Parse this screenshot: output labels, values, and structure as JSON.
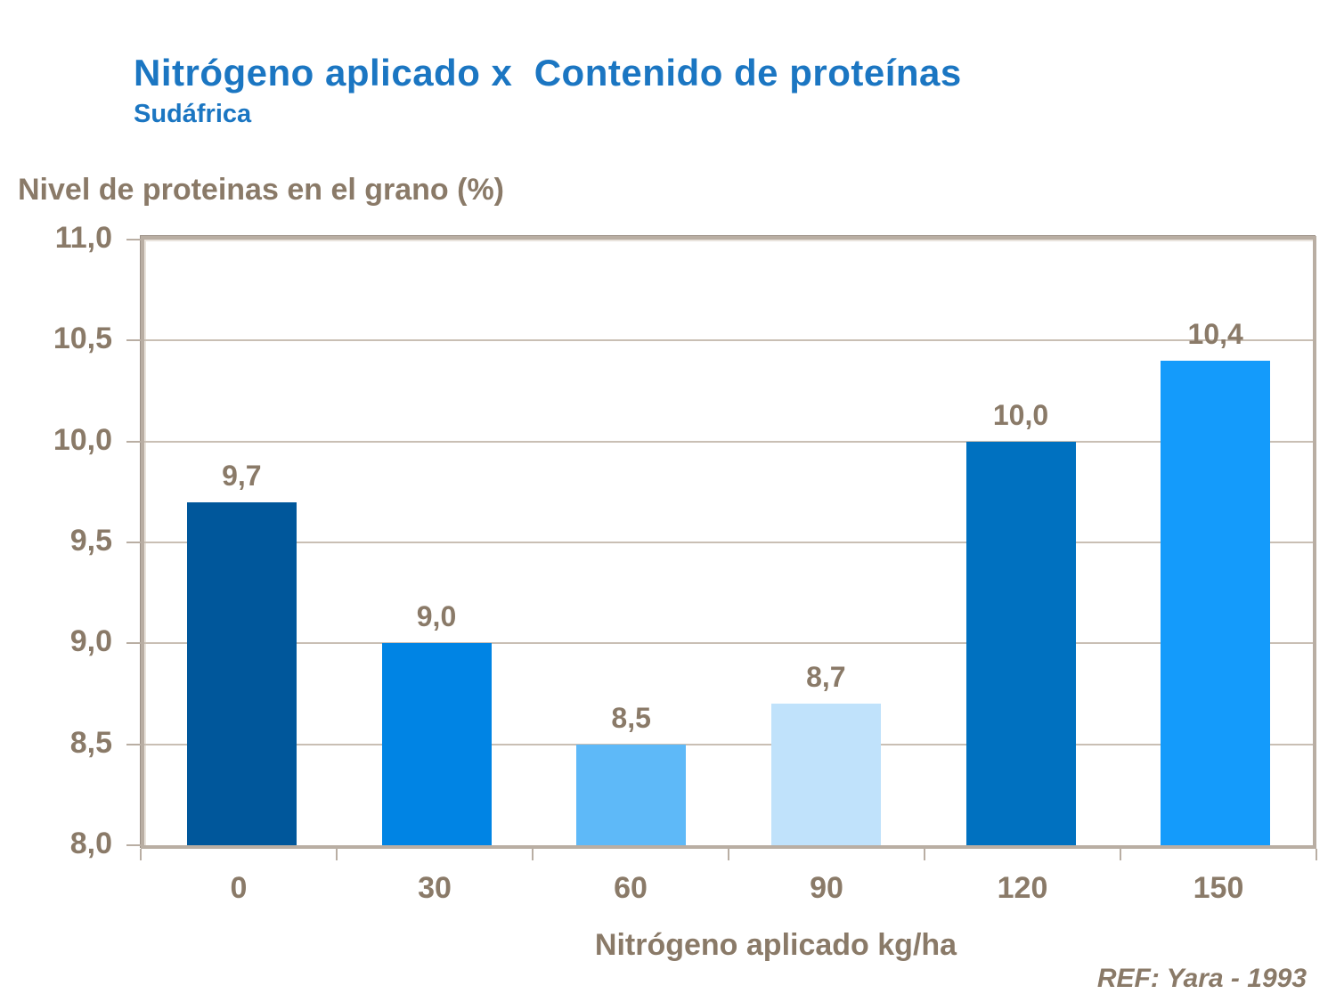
{
  "header": {
    "title": "Nitrógeno aplicado x  Contenido de proteínas",
    "subtitle": "Sudáfrica"
  },
  "chart_data": {
    "type": "bar",
    "title": "Nitrógeno aplicado x Contenido de proteínas — Sudáfrica",
    "ylabel": "Nivel de proteinas en el grano (%)",
    "xlabel": "Nitrógeno aplicado kg/ha",
    "categories": [
      "0",
      "30",
      "60",
      "90",
      "120",
      "150"
    ],
    "values": [
      9.7,
      9.0,
      8.5,
      8.7,
      10.0,
      10.4
    ],
    "value_labels": [
      "9,7",
      "9,0",
      "8,5",
      "8,7",
      "10,0",
      "10,4"
    ],
    "bar_colors": [
      "#00579b",
      "#0084e4",
      "#5eb9f8",
      "#c0e2fb",
      "#0071c0",
      "#149bfb"
    ],
    "ylim": [
      8.0,
      11.0
    ],
    "ytick_step": 0.5,
    "ytick_labels": [
      "11,0",
      "10,5",
      "10,0",
      "9,5",
      "9,0",
      "8,5",
      "8,0"
    ],
    "grid": true,
    "legend": false
  },
  "footer": {
    "ref": "REF: Yara - 1993"
  },
  "colors": {
    "title_blue": "#1b76c2",
    "text_brown": "#8a7a68",
    "axis_tan": "#b9aea3",
    "gridline": "#c9bfb4",
    "background": "#ffffff"
  }
}
